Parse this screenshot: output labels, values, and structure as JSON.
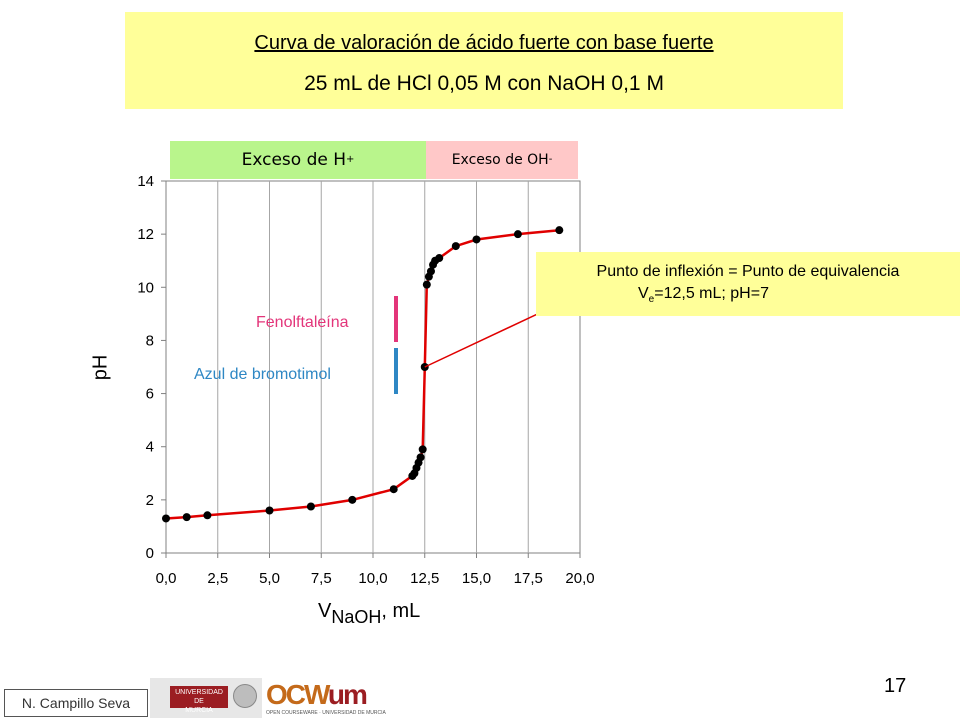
{
  "slide": {
    "title": "Curva de valoración de ácido fuerte con base fuerte",
    "subtitle": "25 mL de HCl 0,05 M con NaOH 0,1 M",
    "zones": {
      "acid_prefix": "Exceso de H",
      "acid_sup": "+",
      "base_prefix": "Exceso de OH",
      "base_sup": "-"
    },
    "inflection": {
      "line1": "Punto de inflexión = Punto de equivalencia",
      "v": "V",
      "sub": "e",
      "rest": "=12,5 mL; pH=7"
    },
    "indicators": {
      "fenolftaleina": "Fenolftaleína",
      "azul": "Azul de bromotimol",
      "fenolftaleina_color": "#e3357a",
      "azul_color": "#2e87c4"
    },
    "footer": {
      "author": "N. Campillo Seva",
      "page": "17",
      "logo_um_line1": "UNIVERSIDAD DE",
      "logo_um_line2": "MURCIA",
      "logo_ocw": "OCW",
      "logo_um": "um",
      "logo_ocw_sub": "OPEN COURSEWARE · UNIVERSIDAD DE MURCIA"
    }
  },
  "chart_data": {
    "type": "scatter",
    "xlabel_main": "V",
    "xlabel_sub": "NaOH",
    "xlabel_unit": ", mL",
    "ylabel": "pH",
    "xlim": [
      0,
      20
    ],
    "ylim": [
      0,
      14
    ],
    "xticks": [
      "0,0",
      "2,5",
      "5,0",
      "7,5",
      "10,0",
      "12,5",
      "15,0",
      "17,5",
      "20,0"
    ],
    "yticks": [
      "0",
      "2",
      "4",
      "6",
      "8",
      "10",
      "12",
      "14"
    ],
    "grid": "vertical",
    "line_color": "#e00000",
    "marker_color": "#000000",
    "points": [
      {
        "x": 0.0,
        "y": 1.3
      },
      {
        "x": 1.0,
        "y": 1.35
      },
      {
        "x": 2.0,
        "y": 1.42
      },
      {
        "x": 5.0,
        "y": 1.6
      },
      {
        "x": 7.0,
        "y": 1.75
      },
      {
        "x": 9.0,
        "y": 2.0
      },
      {
        "x": 11.0,
        "y": 2.4
      },
      {
        "x": 11.9,
        "y": 2.9
      },
      {
        "x": 12.0,
        "y": 3.0
      },
      {
        "x": 12.1,
        "y": 3.2
      },
      {
        "x": 12.2,
        "y": 3.4
      },
      {
        "x": 12.3,
        "y": 3.6
      },
      {
        "x": 12.4,
        "y": 3.9
      },
      {
        "x": 12.5,
        "y": 7.0
      },
      {
        "x": 12.6,
        "y": 10.1
      },
      {
        "x": 12.7,
        "y": 10.4
      },
      {
        "x": 12.8,
        "y": 10.6
      },
      {
        "x": 12.9,
        "y": 10.85
      },
      {
        "x": 13.0,
        "y": 11.0
      },
      {
        "x": 13.2,
        "y": 11.1
      },
      {
        "x": 14.0,
        "y": 11.55
      },
      {
        "x": 15.0,
        "y": 11.8
      },
      {
        "x": 17.0,
        "y": 12.0
      },
      {
        "x": 19.0,
        "y": 12.15
      }
    ],
    "annotation": {
      "target_x": 12.5,
      "target_y": 7.0
    }
  }
}
